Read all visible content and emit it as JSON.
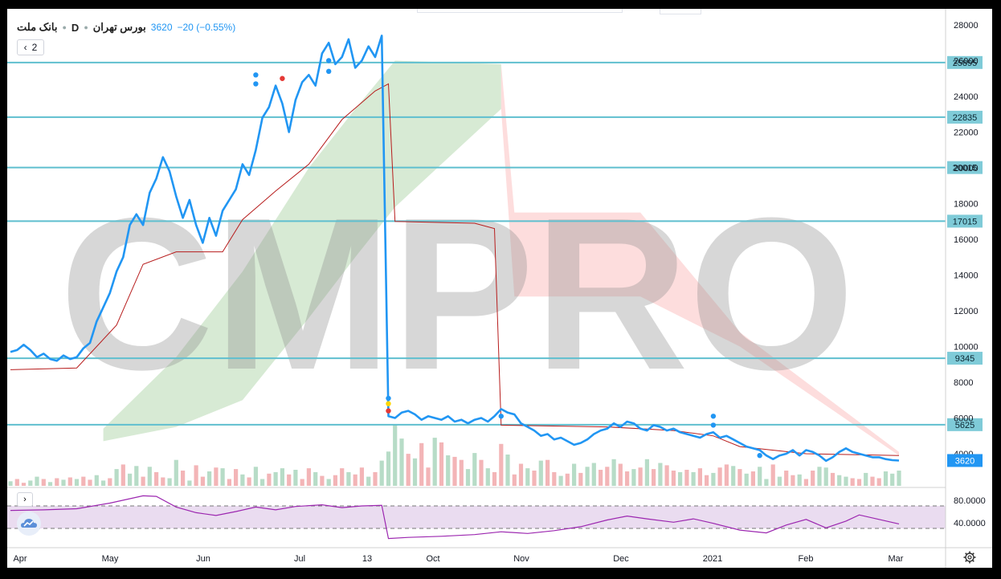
{
  "legend": {
    "symbol": "بانک ملت",
    "timeframe": "D",
    "exchange": "بورس تهران",
    "last_price": "3620",
    "change": "−20 (−0.55%)"
  },
  "indicator_count": "2",
  "icons": {
    "collapse": "chevron-left-icon",
    "rsi_toggle": "chevron-right-icon",
    "logo": "tradingview-cloud-icon",
    "settings": "gear-icon"
  },
  "watermark": "CMPRO",
  "colors": {
    "price_line": "#2196f3",
    "kijun_line": "#b71c1c",
    "level_lines": "#5fbfcf",
    "cloud_bull": "#c9e3c6",
    "cloud_bear": "#fcd2d2",
    "volume_up": "#b7dcc7",
    "volume_down": "#f3b5b7",
    "rsi_line": "#9c27b0",
    "rsi_band": "#eadcf0"
  },
  "chart_data": {
    "type": "line",
    "x_axis_labels": [
      "Apr",
      "May",
      "Jun",
      "Jul",
      "13",
      "Oct",
      "Nov",
      "Dec",
      "2021",
      "Feb",
      "Mar"
    ],
    "y_axis_ticks": [
      4000,
      6000,
      8000,
      10000,
      12000,
      14000,
      16000,
      18000,
      20000,
      22000,
      24000,
      26000,
      28000
    ],
    "ylim": [
      3000,
      28500
    ],
    "grid": false,
    "price_series": {
      "points": [
        [
          0,
          9700
        ],
        [
          1,
          9800
        ],
        [
          2,
          10100
        ],
        [
          3,
          9800
        ],
        [
          4,
          9400
        ],
        [
          5,
          9600
        ],
        [
          6,
          9300
        ],
        [
          7,
          9200
        ],
        [
          8,
          9500
        ],
        [
          9,
          9300
        ],
        [
          10,
          9400
        ],
        [
          11,
          9900
        ],
        [
          12,
          10200
        ],
        [
          13,
          11400
        ],
        [
          14,
          12200
        ],
        [
          15,
          13000
        ],
        [
          16,
          14200
        ],
        [
          17,
          15000
        ],
        [
          18,
          16800
        ],
        [
          19,
          17400
        ],
        [
          20,
          16800
        ],
        [
          21,
          18600
        ],
        [
          22,
          19400
        ],
        [
          23,
          20600
        ],
        [
          24,
          19800
        ],
        [
          25,
          18400
        ],
        [
          26,
          17200
        ],
        [
          27,
          18200
        ],
        [
          28,
          16800
        ],
        [
          29,
          15800
        ],
        [
          30,
          17200
        ],
        [
          31,
          16200
        ],
        [
          32,
          17600
        ],
        [
          33,
          18200
        ],
        [
          34,
          18800
        ],
        [
          35,
          20200
        ],
        [
          36,
          19600
        ],
        [
          37,
          21000
        ],
        [
          38,
          22800
        ],
        [
          39,
          23400
        ],
        [
          40,
          24600
        ],
        [
          41,
          23600
        ],
        [
          42,
          22000
        ],
        [
          43,
          23800
        ],
        [
          44,
          24800
        ],
        [
          45,
          25200
        ],
        [
          46,
          24600
        ],
        [
          47,
          26400
        ],
        [
          48,
          27000
        ],
        [
          49,
          25800
        ],
        [
          50,
          26200
        ],
        [
          51,
          27200
        ],
        [
          52,
          25600
        ],
        [
          53,
          26000
        ],
        [
          54,
          26800
        ],
        [
          55,
          26200
        ],
        [
          56,
          27400
        ],
        [
          57,
          6100
        ],
        [
          58,
          6000
        ],
        [
          59,
          6300
        ],
        [
          60,
          6400
        ],
        [
          61,
          6200
        ],
        [
          62,
          5900
        ],
        [
          63,
          6100
        ],
        [
          64,
          6000
        ],
        [
          65,
          5900
        ],
        [
          66,
          6100
        ],
        [
          67,
          5800
        ],
        [
          68,
          5900
        ],
        [
          69,
          5700
        ],
        [
          70,
          5900
        ],
        [
          71,
          6000
        ],
        [
          72,
          5800
        ],
        [
          73,
          6100
        ],
        [
          74,
          6500
        ],
        [
          75,
          6300
        ],
        [
          76,
          6200
        ],
        [
          77,
          5700
        ],
        [
          78,
          5500
        ],
        [
          79,
          5300
        ],
        [
          80,
          5000
        ],
        [
          81,
          5100
        ],
        [
          82,
          4800
        ],
        [
          83,
          4900
        ],
        [
          84,
          4700
        ],
        [
          85,
          4500
        ],
        [
          86,
          4600
        ],
        [
          87,
          4800
        ],
        [
          88,
          5100
        ],
        [
          89,
          5300
        ],
        [
          90,
          5400
        ],
        [
          91,
          5700
        ],
        [
          92,
          5500
        ],
        [
          93,
          5800
        ],
        [
          94,
          5700
        ],
        [
          95,
          5400
        ],
        [
          96,
          5300
        ],
        [
          97,
          5600
        ],
        [
          98,
          5500
        ],
        [
          99,
          5300
        ],
        [
          100,
          5400
        ],
        [
          101,
          5200
        ],
        [
          102,
          5100
        ],
        [
          103,
          5000
        ],
        [
          104,
          4900
        ],
        [
          105,
          5100
        ],
        [
          106,
          5200
        ],
        [
          107,
          4900
        ],
        [
          108,
          5000
        ],
        [
          109,
          4800
        ],
        [
          110,
          4600
        ],
        [
          111,
          4400
        ],
        [
          112,
          4300
        ],
        [
          113,
          4200
        ],
        [
          114,
          3900
        ],
        [
          115,
          3700
        ],
        [
          116,
          3900
        ],
        [
          117,
          4000
        ],
        [
          118,
          4200
        ],
        [
          119,
          3900
        ],
        [
          120,
          4200
        ],
        [
          121,
          4100
        ],
        [
          122,
          3900
        ],
        [
          123,
          3600
        ],
        [
          124,
          3800
        ],
        [
          125,
          4100
        ],
        [
          126,
          4300
        ],
        [
          127,
          4100
        ],
        [
          128,
          4000
        ],
        [
          129,
          3900
        ],
        [
          130,
          3800
        ],
        [
          131,
          3800
        ],
        [
          132,
          3700
        ],
        [
          133,
          3640
        ],
        [
          134,
          3620
        ]
      ],
      "last_value": 3620
    },
    "kijun_series": [
      [
        0,
        8700
      ],
      [
        10,
        8800
      ],
      [
        16,
        11200
      ],
      [
        20,
        14600
      ],
      [
        25,
        15300
      ],
      [
        32,
        15300
      ],
      [
        35,
        17100
      ],
      [
        40,
        18700
      ],
      [
        45,
        20200
      ],
      [
        50,
        22700
      ],
      [
        55,
        24300
      ],
      [
        57,
        24700
      ],
      [
        58,
        17000
      ],
      [
        70,
        16900
      ],
      [
        73,
        16600
      ],
      [
        74,
        5600
      ],
      [
        90,
        5500
      ],
      [
        100,
        5300
      ],
      [
        106,
        5000
      ],
      [
        110,
        4400
      ],
      [
        120,
        4000
      ],
      [
        134,
        3900
      ]
    ],
    "cloud_bull": {
      "upper": [
        [
          14,
          5400
        ],
        [
          25,
          9400
        ],
        [
          35,
          14200
        ],
        [
          45,
          20000
        ],
        [
          52,
          23300
        ],
        [
          58,
          26000
        ],
        [
          74,
          25800
        ]
      ],
      "lower": [
        [
          14,
          4700
        ],
        [
          25,
          5500
        ],
        [
          35,
          7000
        ],
        [
          45,
          11600
        ],
        [
          52,
          15000
        ],
        [
          58,
          17800
        ],
        [
          74,
          23300
        ]
      ]
    },
    "cloud_bear": {
      "upper": [
        [
          74,
          25800
        ],
        [
          76,
          17500
        ],
        [
          95,
          17500
        ],
        [
          110,
          10800
        ],
        [
          134,
          4100
        ]
      ],
      "lower": [
        [
          74,
          23300
        ],
        [
          76,
          12800
        ],
        [
          95,
          12800
        ],
        [
          110,
          10000
        ],
        [
          134,
          3900
        ]
      ]
    },
    "level_lines": [
      25895,
      22835,
      20015,
      17015,
      9345,
      5625
    ],
    "level_labels": [
      "25895",
      "22835",
      "20015",
      "17015",
      "9345",
      "5625"
    ],
    "signal_dots": [
      {
        "x": 37,
        "y": 25200,
        "color": "#2196f3"
      },
      {
        "x": 37,
        "y": 24700,
        "color": "#2196f3"
      },
      {
        "x": 41,
        "y": 25000,
        "color": "#e53935"
      },
      {
        "x": 48,
        "y": 26000,
        "color": "#2196f3"
      },
      {
        "x": 48,
        "y": 25400,
        "color": "#2196f3"
      },
      {
        "x": 57,
        "y": 7100,
        "color": "#2196f3"
      },
      {
        "x": 57,
        "y": 6800,
        "color": "#ffd600"
      },
      {
        "x": 57,
        "y": 6400,
        "color": "#e53935"
      },
      {
        "x": 74,
        "y": 6100,
        "color": "#2196f3"
      },
      {
        "x": 106,
        "y": 6100,
        "color": "#2196f3"
      },
      {
        "x": 106,
        "y": 5600,
        "color": "#2196f3"
      },
      {
        "x": 113,
        "y": 3900,
        "color": "#2196f3"
      }
    ],
    "volume_pct": [
      6,
      9,
      4,
      7,
      12,
      9,
      5,
      10,
      8,
      11,
      9,
      12,
      8,
      14,
      7,
      10,
      22,
      28,
      16,
      26,
      12,
      25,
      18,
      11,
      10,
      34,
      20,
      7,
      27,
      12,
      19,
      24,
      23,
      9,
      22,
      15,
      11,
      25,
      9,
      16,
      18,
      23,
      15,
      21,
      9,
      23,
      18,
      13,
      9,
      14,
      23,
      18,
      15,
      24,
      12,
      18,
      33,
      45,
      80,
      62,
      42,
      36,
      56,
      24,
      63,
      57,
      40,
      38,
      34,
      22,
      43,
      34,
      23,
      18,
      55,
      41,
      15,
      29,
      23,
      20,
      33,
      34,
      18,
      13,
      16,
      29,
      17,
      25,
      30,
      21,
      25,
      35,
      29,
      19,
      22,
      24,
      35,
      22,
      30,
      27,
      20,
      18,
      21,
      18,
      23,
      14,
      17,
      24,
      28,
      26,
      22,
      16,
      19,
      25,
      9,
      28,
      12,
      20,
      14,
      15,
      9,
      20,
      25,
      24,
      17,
      14,
      12,
      10,
      9,
      17,
      12,
      10,
      19,
      16,
      20
    ],
    "volume_up": [
      1,
      0,
      0,
      1,
      1,
      0,
      1,
      0,
      1,
      0,
      1,
      0,
      0,
      1,
      1,
      0,
      1,
      0,
      1,
      1,
      0,
      1,
      0,
      0,
      1,
      1,
      0,
      1,
      0,
      0,
      1,
      0,
      1,
      0,
      0,
      1,
      0,
      1,
      1,
      0,
      1,
      1,
      0,
      1,
      0,
      0,
      1,
      0,
      1,
      0,
      0,
      1,
      0,
      0,
      1,
      0,
      1,
      1,
      1,
      1,
      0,
      1,
      0,
      0,
      1,
      0,
      1,
      0,
      0,
      1,
      1,
      0,
      1,
      0,
      0,
      1,
      0,
      0,
      1,
      0,
      1,
      0,
      0,
      1,
      0,
      1,
      0,
      1,
      1,
      0,
      0,
      1,
      0,
      0,
      1,
      0,
      1,
      0,
      1,
      0,
      0,
      1,
      0,
      1,
      0,
      0,
      1,
      0,
      0,
      1,
      0,
      1,
      0,
      1,
      1,
      0,
      1,
      0,
      0,
      1,
      0,
      0,
      1,
      1,
      0,
      1,
      1,
      0,
      0,
      1,
      0,
      0,
      1,
      1,
      1
    ],
    "rsi": {
      "ticks": [
        "80.0000",
        "40.0000"
      ],
      "band": [
        30,
        70
      ],
      "ylim": [
        0,
        100
      ],
      "values": [
        [
          0,
          62
        ],
        [
          5,
          63
        ],
        [
          10,
          65
        ],
        [
          15,
          75
        ],
        [
          20,
          88
        ],
        [
          22,
          87
        ],
        [
          25,
          68
        ],
        [
          28,
          58
        ],
        [
          31,
          53
        ],
        [
          34,
          60
        ],
        [
          37,
          68
        ],
        [
          40,
          63
        ],
        [
          43,
          69
        ],
        [
          47,
          72
        ],
        [
          50,
          67
        ],
        [
          53,
          70
        ],
        [
          56,
          71
        ],
        [
          57,
          12
        ],
        [
          60,
          14
        ],
        [
          65,
          16
        ],
        [
          70,
          19
        ],
        [
          74,
          24
        ],
        [
          78,
          21
        ],
        [
          82,
          26
        ],
        [
          86,
          33
        ],
        [
          90,
          45
        ],
        [
          93,
          52
        ],
        [
          96,
          47
        ],
        [
          100,
          41
        ],
        [
          103,
          47
        ],
        [
          106,
          39
        ],
        [
          110,
          27
        ],
        [
          114,
          22
        ],
        [
          117,
          36
        ],
        [
          120,
          46
        ],
        [
          123,
          31
        ],
        [
          126,
          43
        ],
        [
          128,
          54
        ],
        [
          131,
          46
        ],
        [
          134,
          38
        ]
      ]
    }
  }
}
